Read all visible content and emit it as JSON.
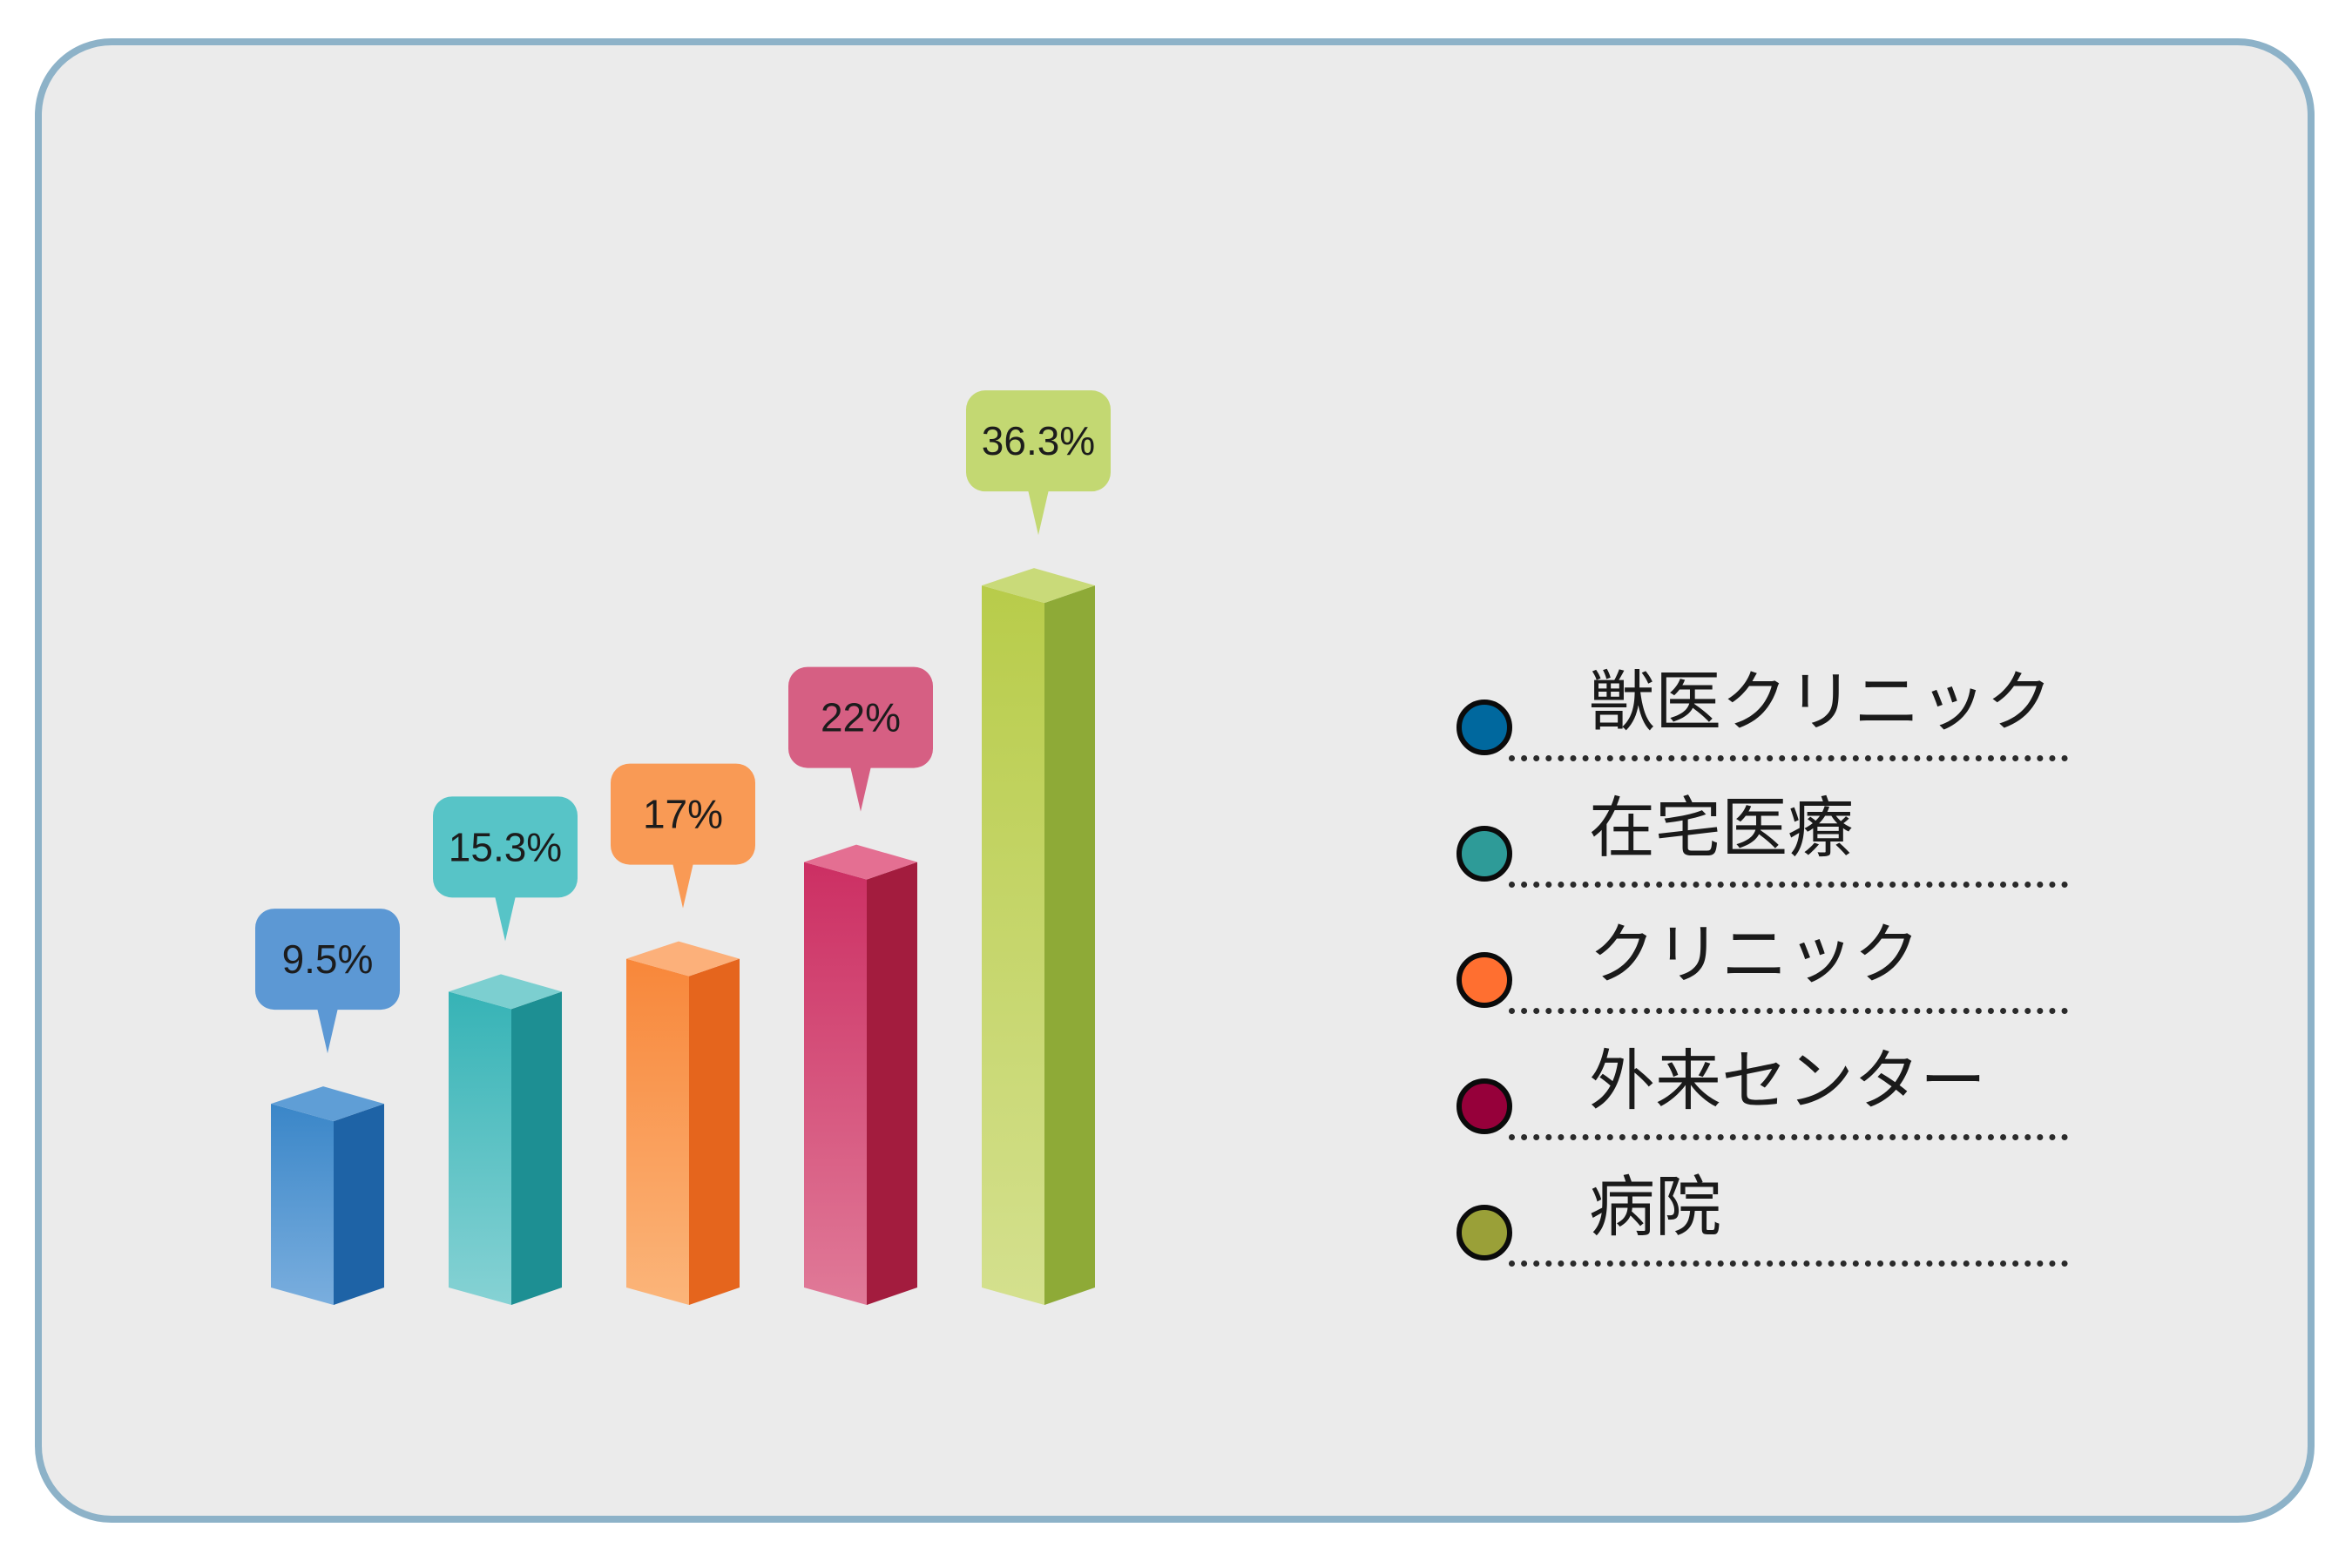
{
  "chart_data": {
    "type": "bar",
    "categories": [
      "獣医クリニック",
      "在宅医療",
      "クリニック",
      "外来センター",
      "病院"
    ],
    "values": [
      9.5,
      15.3,
      17,
      22,
      36.3
    ],
    "value_labels": [
      "9.5%",
      "15.3%",
      "17%",
      "22%",
      "36.3%"
    ],
    "colors": [
      "#00689e",
      "#2e9b98",
      "#ff6f30",
      "#96003a",
      "#9aa038"
    ],
    "bar_colors": [
      {
        "light": "#7aaede",
        "front": "#3a86c8",
        "side": "#1e63a6",
        "top": "#5f9ed6",
        "bubble": "#5c98d4"
      },
      {
        "light": "#86d2d4",
        "front": "#36b3b6",
        "side": "#1d8f93",
        "top": "#7ccfd0",
        "bubble": "#57c4c7"
      },
      {
        "light": "#fbb57a",
        "front": "#f8873a",
        "side": "#e5651d",
        "top": "#fcb07a",
        "bubble": "#f99a55"
      },
      {
        "light": "#e07a98",
        "front": "#cc2f63",
        "side": "#a31c3e",
        "top": "#e46f92",
        "bubble": "#d65f83"
      },
      {
        "light": "#d4e08e",
        "front": "#b8cc4a",
        "side": "#8eaa37",
        "top": "#c9da79",
        "bubble": "#c3d872"
      }
    ],
    "legend_position": "right",
    "grid": false
  }
}
